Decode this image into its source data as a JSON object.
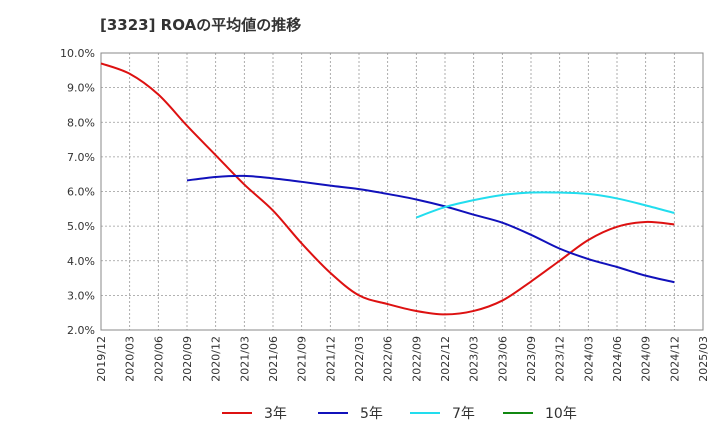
{
  "title": "[3323]  ROAの平均値の推移",
  "chart_data": {
    "type": "line",
    "title": "[3323]  ROAの平均値の推移",
    "xlabel": "",
    "ylabel": "",
    "ylim": [
      2.0,
      10.0
    ],
    "yticks": [
      "2.0%",
      "3.0%",
      "4.0%",
      "5.0%",
      "6.0%",
      "7.0%",
      "8.0%",
      "9.0%",
      "10.0%"
    ],
    "xticks": [
      "2019/12",
      "2020/03",
      "2020/06",
      "2020/09",
      "2020/12",
      "2021/03",
      "2021/06",
      "2021/09",
      "2021/12",
      "2022/03",
      "2022/06",
      "2022/09",
      "2022/12",
      "2023/03",
      "2023/06",
      "2023/09",
      "2023/12",
      "2024/03",
      "2024/06",
      "2024/09",
      "2024/12",
      "2025/03"
    ],
    "grid": true,
    "legend_position": "bottom",
    "series": [
      {
        "name": "3年",
        "color": "#dd1111",
        "x": [
          "2019/12",
          "2020/03",
          "2020/06",
          "2020/09",
          "2020/12",
          "2021/03",
          "2021/06",
          "2021/09",
          "2021/12",
          "2022/03",
          "2022/06",
          "2022/09",
          "2022/12",
          "2023/03",
          "2023/06",
          "2023/09",
          "2023/12",
          "2024/03",
          "2024/06",
          "2024/09",
          "2024/12"
        ],
        "values": [
          9.7,
          9.4,
          8.8,
          7.9,
          7.05,
          6.2,
          5.45,
          4.5,
          3.65,
          3.0,
          2.75,
          2.55,
          2.45,
          2.55,
          2.85,
          3.4,
          4.0,
          4.6,
          4.98,
          5.12,
          5.05
        ]
      },
      {
        "name": "5年",
        "color": "#1111bb",
        "x": [
          "2020/09",
          "2020/12",
          "2021/03",
          "2021/06",
          "2021/09",
          "2021/12",
          "2022/03",
          "2022/06",
          "2022/09",
          "2022/12",
          "2023/03",
          "2023/06",
          "2023/09",
          "2023/12",
          "2024/03",
          "2024/06",
          "2024/09",
          "2024/12"
        ],
        "values": [
          6.32,
          6.42,
          6.45,
          6.38,
          6.28,
          6.17,
          6.07,
          5.93,
          5.77,
          5.57,
          5.33,
          5.1,
          4.75,
          4.35,
          4.05,
          3.82,
          3.57,
          3.38
        ]
      },
      {
        "name": "7年",
        "color": "#22ddee",
        "x": [
          "2022/09",
          "2022/12",
          "2023/03",
          "2023/06",
          "2023/09",
          "2023/12",
          "2024/03",
          "2024/06",
          "2024/09",
          "2024/12"
        ],
        "values": [
          5.25,
          5.55,
          5.75,
          5.9,
          5.97,
          5.97,
          5.93,
          5.8,
          5.6,
          5.38
        ]
      },
      {
        "name": "10年",
        "color": "#118811",
        "x": [],
        "values": []
      }
    ]
  }
}
